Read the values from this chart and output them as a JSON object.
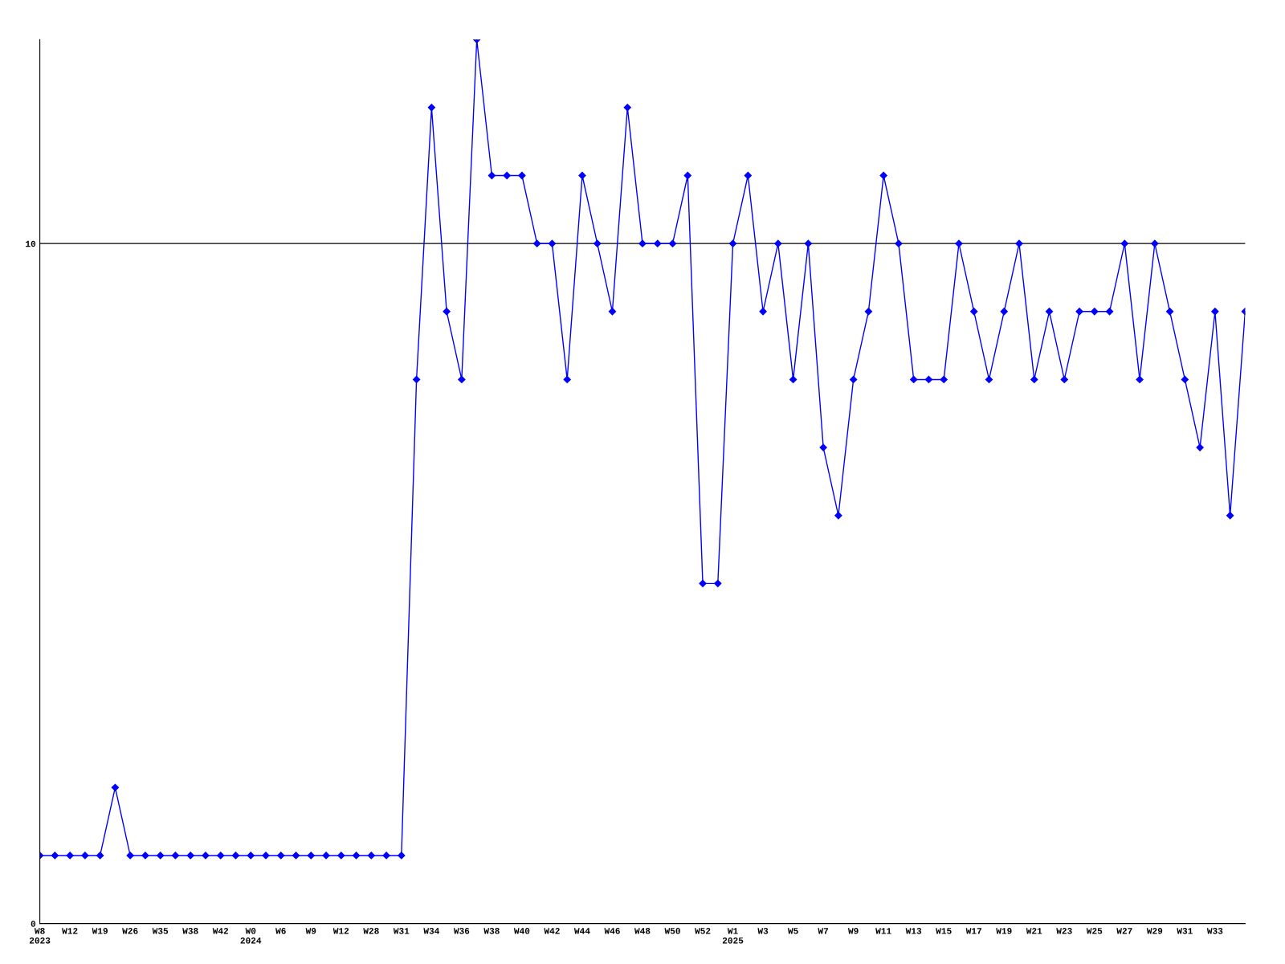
{
  "chart_data": {
    "type": "line",
    "categories": [
      "W8\n2023",
      null,
      "W12",
      null,
      "W19",
      null,
      "W26",
      null,
      "W35",
      null,
      "W38",
      null,
      "W42",
      null,
      "W0\n2024",
      null,
      "W6",
      null,
      "W9",
      null,
      "W12",
      null,
      "W28",
      null,
      "W31",
      null,
      "W34",
      null,
      "W36",
      null,
      "W38",
      null,
      "W40",
      null,
      "W42",
      null,
      "W44",
      null,
      "W46",
      null,
      "W48",
      null,
      "W50",
      null,
      "W52",
      null,
      "W1\n2025",
      null,
      "W3",
      null,
      "W5",
      null,
      "W7",
      null,
      "W9",
      null,
      "W11",
      null,
      "W13",
      null,
      "W15",
      null,
      "W17",
      null,
      "W19",
      null,
      "W21",
      null,
      "W23",
      null,
      "W25",
      null,
      "W27",
      null,
      "W29",
      null,
      "W31",
      null,
      "W33",
      null,
      null
    ],
    "series": [
      {
        "color": "#0000ff",
        "values": [
          1,
          1,
          1,
          1,
          1,
          2,
          1,
          1,
          1,
          1,
          1,
          1,
          1,
          1,
          1,
          1,
          1,
          1,
          1,
          1,
          1,
          1,
          1,
          1,
          1,
          8,
          12,
          9,
          8,
          13,
          11,
          11,
          11,
          10,
          10,
          8,
          11,
          10,
          9,
          12,
          10,
          10,
          10,
          11,
          5,
          5,
          10,
          11,
          9,
          10,
          8,
          10,
          7,
          6,
          8,
          9,
          11,
          10,
          8,
          8,
          8,
          10,
          9,
          8,
          9,
          10,
          8,
          9,
          8,
          9,
          9,
          9,
          10,
          8,
          10,
          9,
          8,
          7,
          9,
          6,
          9
        ]
      }
    ],
    "ylim": [
      0,
      13
    ],
    "yticks": [
      0,
      10
    ],
    "grid": "y",
    "marker": "diamond",
    "line_style": "solid"
  }
}
